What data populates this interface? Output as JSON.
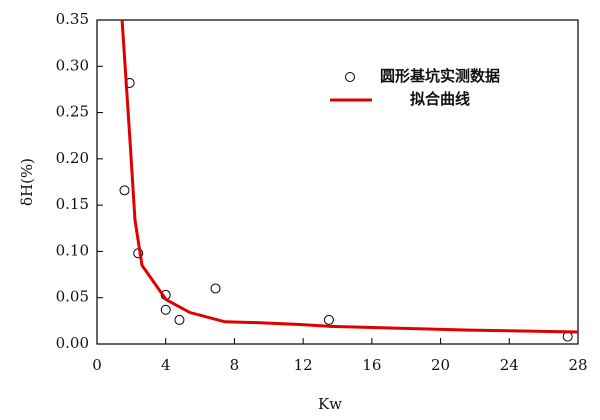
{
  "chart_data": {
    "type": "scatter",
    "xlabel": "Kw",
    "ylabel": "δH(%)",
    "xlim": [
      0,
      28
    ],
    "xticks": [
      0,
      4,
      8,
      12,
      16,
      20,
      24,
      28
    ],
    "ylim": [
      0,
      0.35
    ],
    "yticks": [
      {
        "value": 0,
        "label": "0.00"
      },
      0.05,
      {
        "value": 0.1,
        "label": "0.10"
      },
      0.15,
      {
        "value": 0.2,
        "label": "0.20"
      },
      0.25,
      {
        "value": 0.3,
        "label": "0.30"
      },
      0.35
    ],
    "grid": false,
    "legend": "upper right",
    "series": [
      {
        "name": "圆形基坑实测数据",
        "type": "scatter",
        "color": "#000000",
        "x": [
          1.9,
          1.6,
          2.4,
          4.0,
          4.0,
          4.8,
          6.9,
          13.5,
          27.4
        ],
        "values": [
          0.282,
          0.166,
          0.098,
          0.053,
          0.037,
          0.026,
          0.06,
          0.026,
          0.008
        ]
      },
      {
        "name": "拟合曲线",
        "type": "line",
        "color": "#e00000",
        "x": [
          1.46,
          1.92,
          2.21,
          2.62,
          4.02,
          5.41,
          7.45,
          9.49,
          11.8,
          13.6,
          17.6,
          21.7,
          28
        ],
        "values": [
          0.35,
          0.22,
          0.134,
          0.085,
          0.048,
          0.034,
          0.024,
          0.023,
          0.021,
          0.019,
          0.017,
          0.015,
          0.013
        ]
      }
    ]
  }
}
